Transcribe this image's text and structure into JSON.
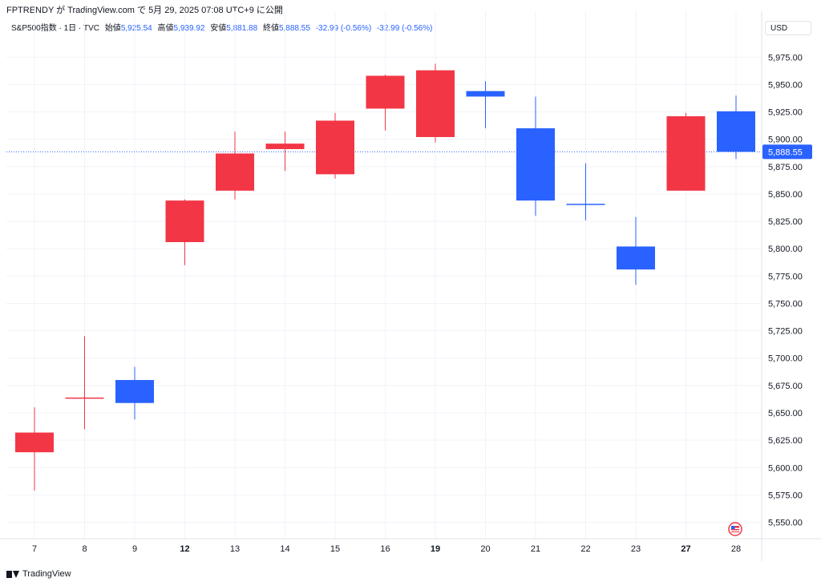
{
  "header": {
    "credit": "FPTRENDY が TradingView.com で 5月 29, 2025 07:08 UTC+9 に公開"
  },
  "legend": {
    "symbol": "S&P500指数 · 1日 · TVC",
    "open_label": "始値",
    "open": "5,925.54",
    "high_label": "高値",
    "high": "5,939.92",
    "low_label": "安値",
    "low": "5,881.88",
    "close_label": "終値",
    "close": "5,888.55",
    "change": "-32.99 (-0.56%)",
    "change2": "-32.99 (-0.56%)"
  },
  "currency_label": "USD",
  "brand": {
    "name": "TradingView"
  },
  "colors": {
    "up": "#2962ff",
    "down": "#f23645",
    "grid": "#f0f3fa",
    "price_line": "#2962ff"
  },
  "chart_data": {
    "type": "candlestick",
    "ylim": [
      5535,
      5995
    ],
    "y_ticks": [
      5550,
      5575,
      5600,
      5625,
      5650,
      5675,
      5700,
      5725,
      5750,
      5775,
      5800,
      5825,
      5850,
      5875,
      5900,
      5925,
      5950,
      5975
    ],
    "last_price": 5888.55,
    "last_price_label": "5,888.55",
    "candles": [
      {
        "x": "7",
        "bold": false,
        "open": 5614,
        "high": 5655,
        "low": 5579,
        "close": 5632,
        "color": "down"
      },
      {
        "x": "8",
        "bold": false,
        "open": 5663,
        "high": 5720,
        "low": 5635,
        "close": 5664,
        "color": "down"
      },
      {
        "x": "9",
        "bold": false,
        "open": 5659,
        "high": 5692,
        "low": 5644,
        "close": 5680,
        "color": "up"
      },
      {
        "x": "12",
        "bold": true,
        "open": 5806,
        "high": 5845,
        "low": 5785,
        "close": 5844,
        "color": "down"
      },
      {
        "x": "13",
        "bold": false,
        "open": 5853,
        "high": 5907,
        "low": 5845,
        "close": 5887,
        "color": "down"
      },
      {
        "x": "14",
        "bold": false,
        "open": 5891,
        "high": 5907,
        "low": 5871,
        "close": 5896,
        "color": "down"
      },
      {
        "x": "15",
        "bold": false,
        "open": 5868,
        "high": 5924,
        "low": 5864,
        "close": 5917,
        "color": "down"
      },
      {
        "x": "16",
        "bold": false,
        "open": 5928,
        "high": 5959,
        "low": 5908,
        "close": 5958,
        "color": "down"
      },
      {
        "x": "19",
        "bold": true,
        "open": 5902,
        "high": 5969,
        "low": 5897,
        "close": 5963,
        "color": "down"
      },
      {
        "x": "20",
        "bold": false,
        "open": 5944,
        "high": 5953,
        "low": 5910,
        "close": 5939,
        "color": "up"
      },
      {
        "x": "21",
        "bold": false,
        "open": 5910,
        "high": 5939,
        "low": 5830,
        "close": 5844,
        "color": "up"
      },
      {
        "x": "22",
        "bold": false,
        "open": 5841,
        "high": 5878,
        "low": 5826,
        "close": 5841,
        "color": "up"
      },
      {
        "x": "23",
        "bold": false,
        "open": 5802,
        "high": 5829,
        "low": 5767,
        "close": 5781,
        "color": "up"
      },
      {
        "x": "27",
        "bold": true,
        "open": 5853,
        "high": 5924,
        "low": 5853,
        "close": 5921,
        "color": "down"
      },
      {
        "x": "28",
        "bold": false,
        "open": 5925.54,
        "high": 5939.92,
        "low": 5881.88,
        "close": 5888.55,
        "color": "up"
      }
    ]
  }
}
